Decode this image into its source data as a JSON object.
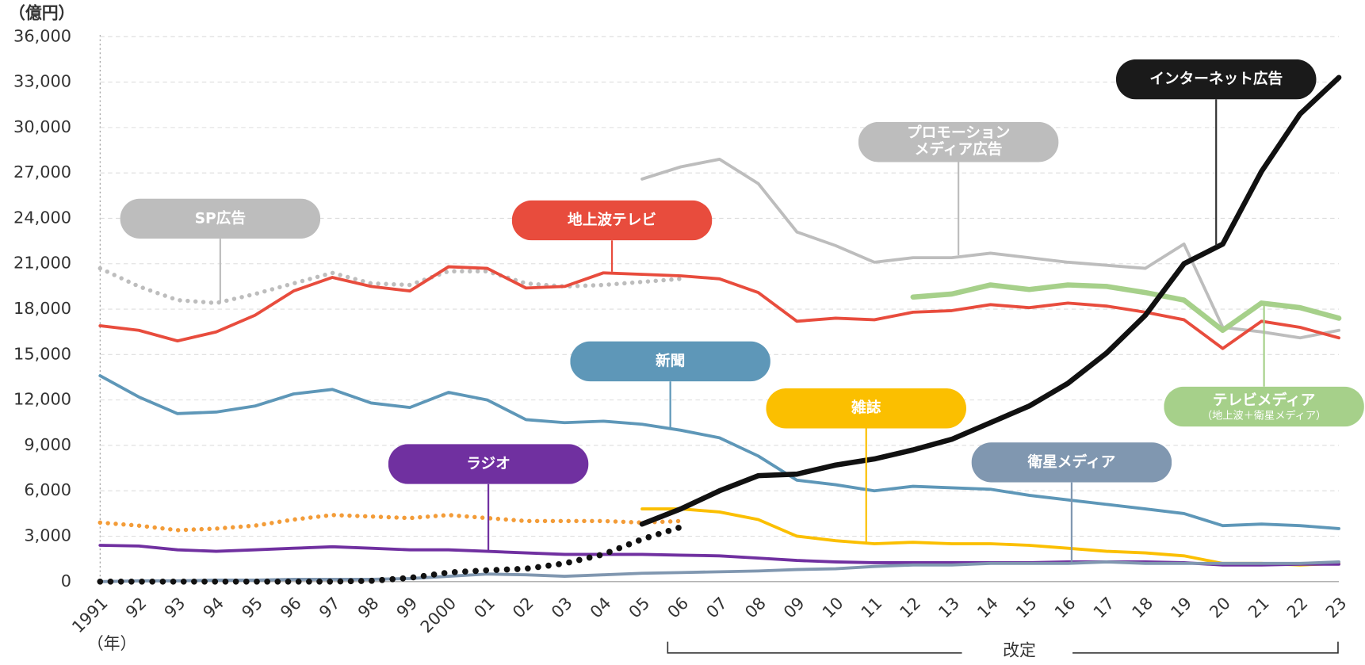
{
  "chart_data": {
    "type": "line",
    "y_unit": "（億円）",
    "x_unit": "（年）",
    "annotation": "改定",
    "categories": [
      "1991",
      "92",
      "93",
      "94",
      "95",
      "96",
      "97",
      "98",
      "99",
      "2000",
      "01",
      "02",
      "03",
      "04",
      "05",
      "06",
      "07",
      "08",
      "09",
      "10",
      "11",
      "12",
      "13",
      "14",
      "15",
      "16",
      "17",
      "18",
      "19",
      "20",
      "21",
      "22",
      "23"
    ],
    "ylim": [
      0,
      36000
    ],
    "yticks": [
      0,
      {
        "value": 3000,
        "label": "3,000"
      },
      {
        "value": 6000,
        "label": "6,000"
      },
      {
        "value": 9000,
        "label": "9,000"
      },
      {
        "value": 12000,
        "label": "12,000"
      },
      {
        "value": 15000,
        "label": "15,000"
      },
      {
        "value": 18000,
        "label": "18,000"
      },
      {
        "value": 21000,
        "label": "21,000"
      },
      {
        "value": 24000,
        "label": "24,000"
      },
      {
        "value": 27000,
        "label": "27,000"
      },
      {
        "value": 30000,
        "label": "30,000"
      },
      {
        "value": 33000,
        "label": "33,000"
      },
      {
        "value": 36000,
        "label": "36,000"
      }
    ],
    "grid": true,
    "series": [
      {
        "name": "SP広告",
        "color": "#bdbdbd",
        "style": "dotted",
        "values": [
          20700,
          19500,
          18600,
          18400,
          19000,
          19700,
          20400,
          19700,
          19600,
          20500,
          20500,
          19700,
          19500,
          19600,
          19800,
          20000,
          null,
          null,
          null,
          null,
          null,
          null,
          null,
          null,
          null,
          null,
          null,
          null,
          null,
          null,
          null,
          null,
          null
        ]
      },
      {
        "name": "プロモーション\nメディア広告",
        "color": "#bdbdbd",
        "values": [
          null,
          null,
          null,
          null,
          null,
          null,
          null,
          null,
          null,
          null,
          null,
          null,
          null,
          null,
          26600,
          27400,
          27900,
          26300,
          23100,
          22200,
          21100,
          21400,
          21400,
          21700,
          21400,
          21100,
          20900,
          20700,
          22300,
          16800,
          16500,
          16100,
          16600
        ]
      },
      {
        "name": "地上波テレビ",
        "color": "#e84c3d",
        "values": [
          16900,
          16600,
          15900,
          16500,
          17600,
          19200,
          20100,
          19500,
          19200,
          20800,
          20700,
          19400,
          19500,
          20400,
          20300,
          20200,
          20000,
          19100,
          17200,
          17400,
          17300,
          17800,
          17900,
          18300,
          18100,
          18400,
          18200,
          17800,
          17300,
          15400,
          17200,
          16800,
          16100
        ]
      },
      {
        "name": "テレビメディア",
        "note": "（地上波＋衛星メディア）",
        "color": "#a6d08a",
        "values": [
          null,
          null,
          null,
          null,
          null,
          null,
          null,
          null,
          null,
          null,
          null,
          null,
          null,
          null,
          null,
          null,
          null,
          null,
          null,
          null,
          null,
          18800,
          19000,
          19600,
          19300,
          19600,
          19500,
          19100,
          18600,
          16600,
          18400,
          18100,
          17400
        ]
      },
      {
        "name": "新聞",
        "color": "#5e97b8",
        "values": [
          13600,
          12200,
          11100,
          11200,
          11600,
          12400,
          12700,
          11800,
          11500,
          12500,
          12000,
          10700,
          10500,
          10600,
          10400,
          10000,
          9500,
          8300,
          6700,
          6400,
          6000,
          6300,
          6200,
          6100,
          5700,
          5400,
          5100,
          4800,
          4500,
          3700,
          3800,
          3700,
          3500
        ]
      },
      {
        "color": "#f39c38",
        "style": "dotted",
        "values": [
          3900,
          3700,
          3400,
          3500,
          3700,
          4100,
          4400,
          4300,
          4200,
          4400,
          4200,
          4000,
          4000,
          4000,
          3900,
          4000,
          null,
          null,
          null,
          null,
          null,
          null,
          null,
          null,
          null,
          null,
          null,
          null,
          null,
          null,
          null,
          null,
          null
        ]
      },
      {
        "name": "雑誌",
        "color": "#fbbf00",
        "values": [
          null,
          null,
          null,
          null,
          null,
          null,
          null,
          null,
          null,
          null,
          null,
          null,
          null,
          null,
          4800,
          4800,
          4600,
          4100,
          3000,
          2700,
          2500,
          2600,
          2500,
          2500,
          2400,
          2200,
          2000,
          1900,
          1700,
          1200,
          1200,
          1100,
          1200
        ]
      },
      {
        "name": "ラジオ",
        "color": "#7030a0",
        "values": [
          2400,
          2350,
          2100,
          2000,
          2100,
          2200,
          2300,
          2200,
          2100,
          2100,
          2000,
          1900,
          1800,
          1800,
          1800,
          1750,
          1700,
          1550,
          1400,
          1300,
          1250,
          1250,
          1250,
          1250,
          1250,
          1300,
          1300,
          1300,
          1250,
          1100,
          1100,
          1150,
          1150
        ]
      },
      {
        "name": "衛星メディア",
        "color": "#8097b0",
        "values": [
          0,
          50,
          50,
          100,
          100,
          150,
          150,
          150,
          200,
          350,
          500,
          450,
          350,
          450,
          550,
          600,
          650,
          700,
          800,
          850,
          1000,
          1100,
          1100,
          1200,
          1200,
          1200,
          1300,
          1200,
          1200,
          1200,
          1200,
          1200,
          1300
        ]
      },
      {
        "color": "#111111",
        "style": "dotted",
        "values": [
          0,
          0,
          0,
          0,
          0,
          0,
          0,
          50,
          250,
          600,
          750,
          850,
          1200,
          1800,
          2800,
          3600,
          null,
          null,
          null,
          null,
          null,
          null,
          null,
          null,
          null,
          null,
          null,
          null,
          null,
          null,
          null,
          null,
          null
        ]
      },
      {
        "name": "インターネット広告",
        "color": "#111111",
        "values": [
          null,
          null,
          null,
          null,
          null,
          null,
          null,
          null,
          null,
          null,
          null,
          null,
          null,
          null,
          3800,
          4800,
          6000,
          7000,
          7100,
          7700,
          8100,
          8700,
          9400,
          10500,
          11600,
          13100,
          15100,
          17600,
          21000,
          22300,
          27100,
          30900,
          33300
        ]
      }
    ]
  }
}
